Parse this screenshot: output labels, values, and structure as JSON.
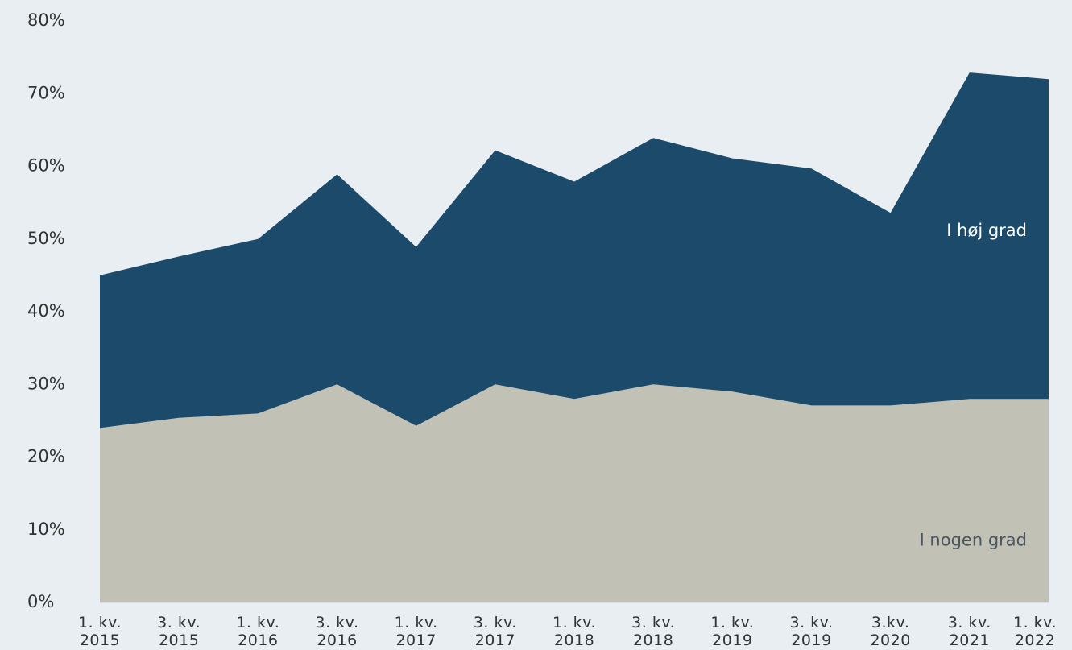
{
  "chart_data": {
    "type": "stacked_area",
    "categories": [
      "1. kv.\n2015",
      "3. kv.\n2015",
      "1. kv.\n2016",
      "3. kv.\n2016",
      "1. kv.\n2017",
      "3. kv.\n2017",
      "1. kv.\n2018",
      "3. kv.\n2018",
      "1. kv.\n2019",
      "3. kv.\n2019",
      "3.kv.\n2020",
      "3. kv.\n2021",
      "1. kv.\n2022"
    ],
    "series": [
      {
        "name": "I nogen grad",
        "color": "#c2c1b5",
        "values": [
          24,
          25.4,
          26,
          30,
          24.3,
          30,
          28,
          30,
          29,
          27.1,
          27.1,
          28,
          28
        ]
      },
      {
        "name": "I høj grad",
        "color": "#1b4a6b",
        "values": [
          21,
          22.2,
          24,
          28.9,
          24.6,
          32.2,
          29.9,
          33.9,
          32.1,
          32.6,
          26.5,
          44.9,
          44
        ]
      }
    ],
    "ylim": [
      0,
      80
    ],
    "yticks": [
      {
        "value": 0,
        "label": "0%"
      },
      {
        "value": 10,
        "label": "10%"
      },
      {
        "value": 20,
        "label": "20%"
      },
      {
        "value": 30,
        "label": "30%"
      },
      {
        "value": 40,
        "label": "40%"
      },
      {
        "value": 50,
        "label": "50%"
      },
      {
        "value": 60,
        "label": "60%"
      },
      {
        "value": 70,
        "label": "70%"
      },
      {
        "value": 80,
        "label": "80%"
      }
    ],
    "grid": false
  }
}
